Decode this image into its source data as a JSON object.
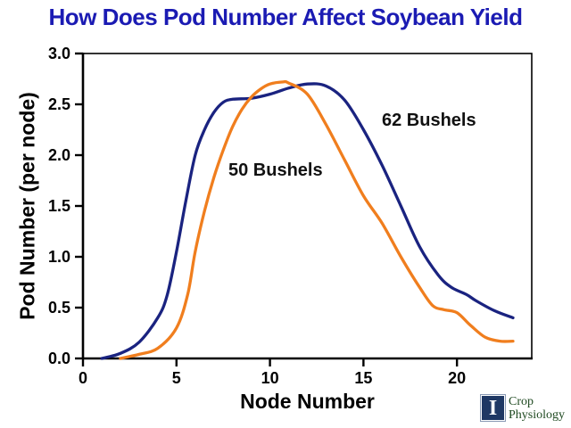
{
  "header": {
    "title": "How Does Pod Number Affect Soybean Yield",
    "title_color": "#1B1BB3"
  },
  "chart_data": {
    "type": "line",
    "title": "How Does Pod Number Affect Soybean Yield",
    "xlabel": "Node Number",
    "ylabel": "Pod Number (per node)",
    "xlim": [
      0,
      24
    ],
    "ylim": [
      0.0,
      3.0
    ],
    "x_ticks": [
      0,
      5,
      10,
      15,
      20
    ],
    "y_ticks": [
      "0.0",
      "0.5",
      "1.0",
      "1.5",
      "2.0",
      "2.5",
      "3.0"
    ],
    "grid": false,
    "legend_position": "inline-annotations",
    "axis_color": "#000000",
    "series": [
      {
        "name": "62 Bushels",
        "color": "#1A2380",
        "points": [
          [
            1,
            0.0
          ],
          [
            2,
            0.05
          ],
          [
            3,
            0.16
          ],
          [
            4,
            0.4
          ],
          [
            4.5,
            0.62
          ],
          [
            5,
            1.05
          ],
          [
            5.5,
            1.55
          ],
          [
            6,
            2.0
          ],
          [
            6.5,
            2.25
          ],
          [
            7,
            2.42
          ],
          [
            7.5,
            2.52
          ],
          [
            8,
            2.55
          ],
          [
            9,
            2.56
          ],
          [
            10,
            2.6
          ],
          [
            11,
            2.66
          ],
          [
            12,
            2.7
          ],
          [
            13,
            2.68
          ],
          [
            14,
            2.54
          ],
          [
            15,
            2.25
          ],
          [
            16,
            1.9
          ],
          [
            17,
            1.5
          ],
          [
            18,
            1.1
          ],
          [
            19,
            0.82
          ],
          [
            19.7,
            0.7
          ],
          [
            20.5,
            0.63
          ],
          [
            21,
            0.57
          ],
          [
            22,
            0.47
          ],
          [
            23,
            0.4
          ]
        ]
      },
      {
        "name": "50 Bushels",
        "color": "#F07E1E",
        "points": [
          [
            2,
            0.0
          ],
          [
            3,
            0.04
          ],
          [
            4,
            0.1
          ],
          [
            5,
            0.3
          ],
          [
            5.6,
            0.63
          ],
          [
            6,
            1.05
          ],
          [
            6.5,
            1.45
          ],
          [
            7,
            1.78
          ],
          [
            7.5,
            2.05
          ],
          [
            8,
            2.28
          ],
          [
            8.5,
            2.45
          ],
          [
            9,
            2.57
          ],
          [
            9.5,
            2.65
          ],
          [
            10,
            2.7
          ],
          [
            10.7,
            2.72
          ],
          [
            11,
            2.71
          ],
          [
            12,
            2.6
          ],
          [
            13,
            2.3
          ],
          [
            14,
            1.95
          ],
          [
            15,
            1.6
          ],
          [
            16,
            1.33
          ],
          [
            17,
            1.0
          ],
          [
            18,
            0.7
          ],
          [
            18.7,
            0.52
          ],
          [
            19.3,
            0.48
          ],
          [
            20,
            0.45
          ],
          [
            20.7,
            0.33
          ],
          [
            21.5,
            0.21
          ],
          [
            22.3,
            0.17
          ],
          [
            23,
            0.17
          ]
        ]
      }
    ]
  },
  "annotations": {
    "series_50_label": "50 Bushels",
    "series_62_label": "62 Bushels"
  },
  "logo": {
    "mark": "I",
    "line1": "Crop",
    "line2": "Physiology",
    "square_color": "#1F3864",
    "text_color": "#1F4A21"
  }
}
